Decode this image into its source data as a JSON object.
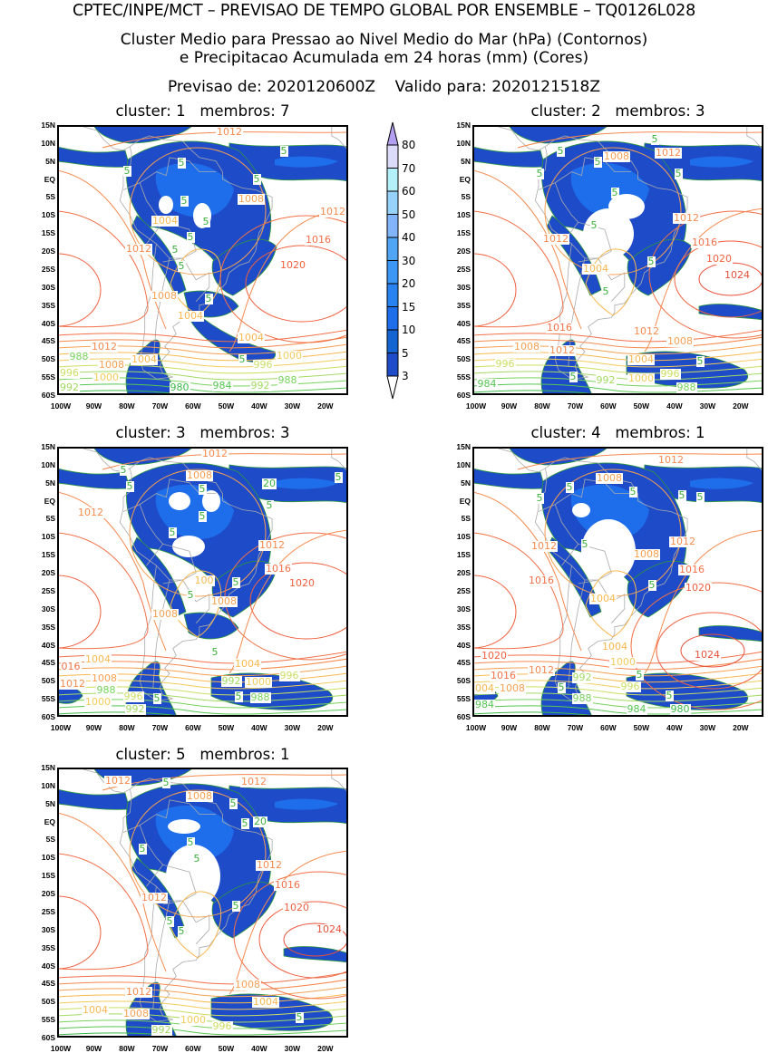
{
  "header": {
    "line1": "CPTEC/INPE/MCT – PREVISAO DE TEMPO GLOBAL POR ENSEMBLE – TQ0126L028",
    "line2": "Cluster Medio para Pressao ao Nivel Medio do Mar (hPa) (Contornos)",
    "line3": "e Precipitacao Acumulada em 24 horas (mm) (Cores)",
    "line4": "Previsao de: 2020120600Z    Valido para: 2020121518Z"
  },
  "axis": {
    "lat_labels": [
      "15N",
      "10N",
      "5N",
      "EQ",
      "5S",
      "10S",
      "15S",
      "20S",
      "25S",
      "30S",
      "35S",
      "40S",
      "45S",
      "50S",
      "55S",
      "60S"
    ],
    "lon_labels": [
      "100W",
      "90W",
      "80W",
      "70W",
      "60W",
      "50W",
      "40W",
      "30W",
      "20W"
    ]
  },
  "colorbar": {
    "levels": [
      "80",
      "70",
      "60",
      "50",
      "40",
      "30",
      "20",
      "15",
      "10",
      "5",
      "3"
    ],
    "colors": [
      "#dcdcfa",
      "#b4f0fa",
      "#96d2fa",
      "#82b4fa",
      "#50a5f5",
      "#3c96f5",
      "#2882f0",
      "#1e6eeb",
      "#1464d2",
      "#1e4bc8"
    ],
    "over_color": "#b4a0f0",
    "under_color": "#ffffff"
  },
  "panels": [
    {
      "title": "cluster: 1   membros: 7",
      "contour_labels": [
        "1012",
        "1008",
        "1012",
        "1004",
        "1016",
        "1012",
        "1020",
        "1008",
        "1004",
        "1012",
        "1008",
        "1004",
        "1000",
        "996",
        "992",
        "988",
        "1004",
        "1000",
        "996",
        "992",
        "988",
        "984",
        "980"
      ],
      "precip_labels": [
        "5",
        "5",
        "5",
        "5",
        "5",
        "5",
        "5",
        "5",
        "5",
        "5",
        "5"
      ]
    },
    {
      "title": "cluster: 2   membros: 3",
      "contour_labels": [
        "1012",
        "1008",
        "1012",
        "1012",
        "1016",
        "1020",
        "1024",
        "1004",
        "1016",
        "1012",
        "1012",
        "1008",
        "1008",
        "996",
        "1004",
        "1000",
        "996",
        "992",
        "988",
        "984"
      ],
      "precip_labels": [
        "5",
        "5",
        "5",
        "5",
        "5",
        "5",
        "5",
        "5",
        "5",
        "5",
        "5"
      ]
    },
    {
      "title": "cluster: 3   membros: 3",
      "contour_labels": [
        "1012",
        "1008",
        "1012",
        "1012",
        "1016",
        "1020",
        "1008",
        "100",
        "1008",
        "1004",
        "1000",
        "996",
        "992",
        "988",
        "016",
        "1012",
        "1008",
        "1004",
        "1000",
        "996",
        "992",
        "988"
      ],
      "precip_labels": [
        "5",
        "5",
        "5",
        "5",
        "5",
        "5",
        "5",
        "5",
        "5",
        "5",
        "5",
        "5",
        "20"
      ]
    },
    {
      "title": "cluster: 4   membros: 1",
      "contour_labels": [
        "1012",
        "1008",
        "1012",
        "1012",
        "1008",
        "1016",
        "1016",
        "1020",
        "1004",
        "1024",
        "1004",
        "1000",
        "1020",
        "1016",
        "1012",
        "1008",
        "004",
        "992",
        "988",
        "996",
        "984",
        "980",
        "984"
      ],
      "precip_labels": [
        "5",
        "5",
        "5",
        "5",
        "5",
        "5",
        "5",
        "5",
        "5",
        "5"
      ]
    },
    {
      "title": "cluster: 5   membros: 1",
      "contour_labels": [
        "1012",
        "1012",
        "1008",
        "1012",
        "1016",
        "1012",
        "1020",
        "1024",
        "1008",
        "1004",
        "1012",
        "1008",
        "1004",
        "1000",
        "996",
        "992"
      ],
      "precip_labels": [
        "5",
        "5",
        "5",
        "5",
        "5",
        "5",
        "5",
        "5",
        "5",
        "5",
        "20"
      ]
    }
  ]
}
